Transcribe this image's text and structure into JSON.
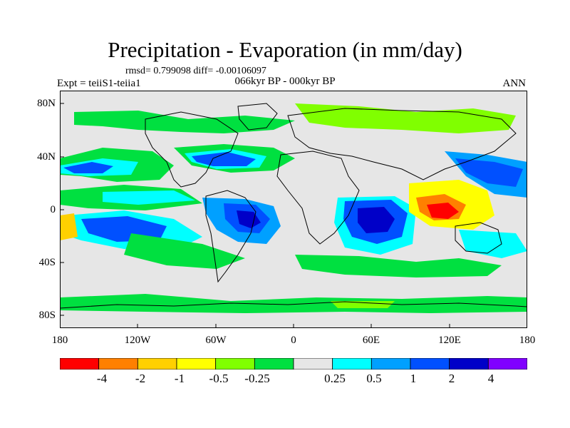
{
  "title": "Precipitation - Evaporation (in mm/day)",
  "stats": "rmsd= 0.799098 diff= -0.00106097",
  "experiment": "Expt = teiiS1-teiia1",
  "period": "066kyr BP - 000kyr BP",
  "season": "ANN",
  "map": {
    "y_tick_labels": [
      "80N",
      "40N",
      "0",
      "40S",
      "80S"
    ],
    "x_tick_labels": [
      "180",
      "120W",
      "60W",
      "0",
      "60E",
      "120E",
      "180"
    ],
    "background_color": "#e6e6e6"
  },
  "colorbar": {
    "colors": [
      "#ff0000",
      "#ff8000",
      "#ffd000",
      "#ffff00",
      "#80ff00",
      "#00e040",
      "#e6e6e6",
      "#00ffff",
      "#00a0ff",
      "#0050ff",
      "#0000c8",
      "#8000ff"
    ],
    "labels": [
      "-4",
      "-2",
      "-1",
      "-0.5",
      "-0.25",
      "0.25",
      "0.5",
      "1",
      "2",
      "4"
    ]
  }
}
